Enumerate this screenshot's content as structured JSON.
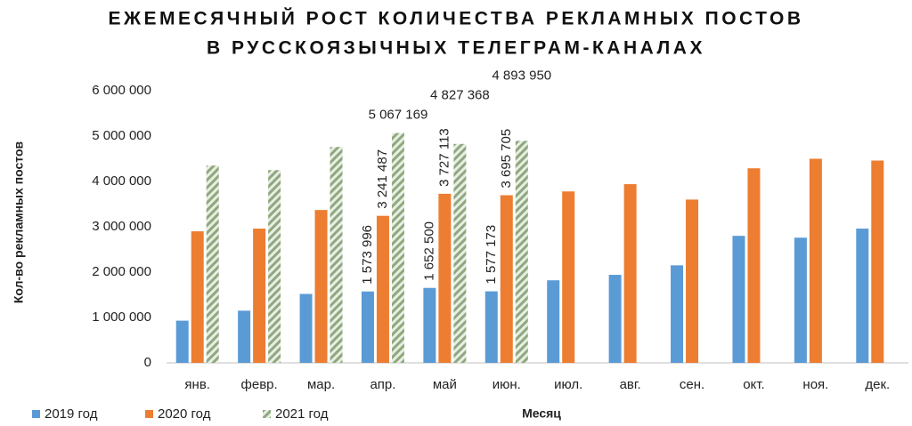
{
  "chart_data": {
    "type": "bar",
    "title": [
      "ЕЖЕМЕСЯЧНЫЙ РОСТ КОЛИЧЕСТВА РЕКЛАМНЫХ ПОСТОВ",
      "В РУССКОЯЗЫЧНЫХ  ТЕЛЕГРАМ-КАНАЛАХ"
    ],
    "x_label": "Месяц",
    "y_label": "Кол-во рекламных постов",
    "categories": [
      "янв.",
      "февр.",
      "мар.",
      "апр.",
      "май",
      "июн.",
      "июл.",
      "авг.",
      "сен.",
      "окт.",
      "ноя.",
      "дек."
    ],
    "series": [
      {
        "name": "2019 год",
        "color": "#5b9bd5",
        "values": [
          930000,
          1150000,
          1520000,
          1573996,
          1652500,
          1577173,
          1820000,
          1940000,
          2150000,
          2800000,
          2760000,
          2960000
        ],
        "value_labels": [
          null,
          null,
          null,
          "1 573 996",
          "1 652 500",
          "1 577 173",
          null,
          null,
          null,
          null,
          null,
          null
        ]
      },
      {
        "name": "2020 год",
        "color": "#ed7d31",
        "values": [
          2900000,
          2960000,
          3370000,
          3241487,
          3727113,
          3695705,
          3780000,
          3940000,
          3600000,
          4290000,
          4500000,
          4460000
        ],
        "value_labels": [
          null,
          null,
          null,
          "3 241 487",
          "3 727 113",
          "3 695 705",
          null,
          null,
          null,
          null,
          null,
          null
        ]
      },
      {
        "name": "2021 год",
        "color": "#8fa87f",
        "pattern": "hatch",
        "values": [
          4350000,
          4250000,
          4760000,
          5067169,
          4827368,
          4893950,
          null,
          null,
          null,
          null,
          null,
          null
        ],
        "value_labels": [
          null,
          null,
          null,
          "5 067 169",
          "4 827 368",
          "4 893 950",
          null,
          null,
          null,
          null,
          null,
          null
        ]
      }
    ],
    "ylim": [
      0,
      6000000
    ],
    "yticks": [
      {
        "value": 0,
        "label": "0"
      },
      {
        "value": 1000000,
        "label": "1 000 000"
      },
      {
        "value": 2000000,
        "label": "2 000 000"
      },
      {
        "value": 3000000,
        "label": "3 000 000"
      },
      {
        "value": 4000000,
        "label": "4 000 000"
      },
      {
        "value": 5000000,
        "label": "5 000 000"
      },
      {
        "value": 6000000,
        "label": "6 000 000"
      }
    ],
    "grid": false,
    "legend": "bottom-left"
  }
}
